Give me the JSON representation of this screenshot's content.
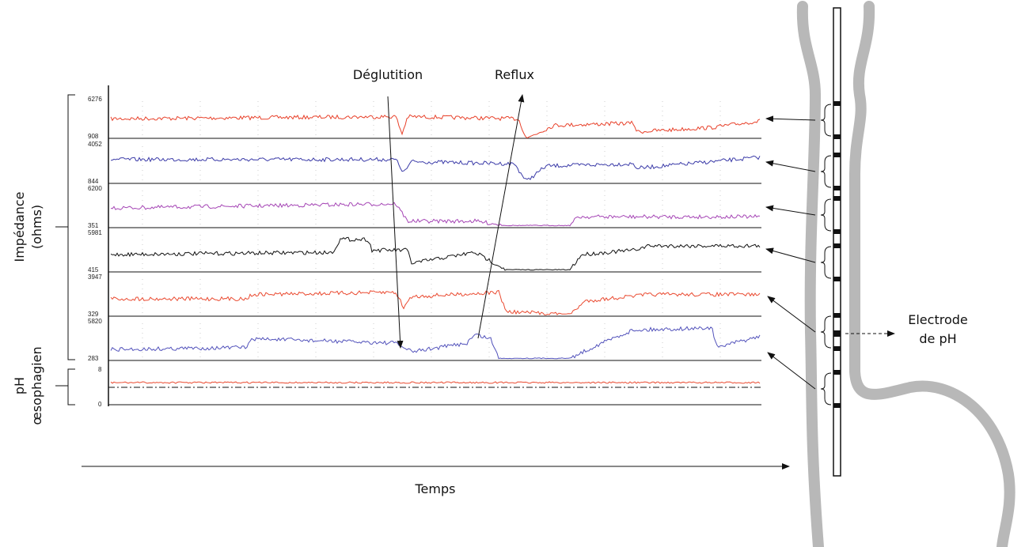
{
  "labels": {
    "deglutition": "Déglutition",
    "reflux": "Reflux",
    "impedance": [
      "Impédance",
      "(ohms)"
    ],
    "ph": [
      "pH",
      "œsophagien"
    ],
    "time": "Temps",
    "electrode": [
      "Electrode",
      "de pH"
    ]
  },
  "channels": [
    {
      "max": "6276",
      "min": "908"
    },
    {
      "max": "4052",
      "min": "844"
    },
    {
      "max": "6200",
      "min": "351"
    },
    {
      "max": "5981",
      "min": "415"
    },
    {
      "max": "3947",
      "min": "329"
    },
    {
      "max": "5820",
      "min": "283"
    }
  ],
  "ph_channel": {
    "max": "8",
    "min": "0"
  }
}
